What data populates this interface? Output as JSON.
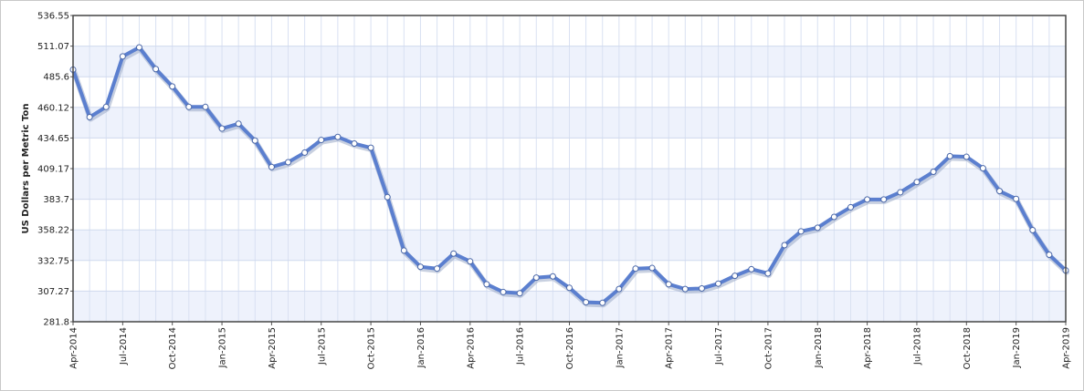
{
  "chart_data": {
    "type": "line",
    "ylabel": "US Dollars per Metric Ton",
    "ylim": [
      281.8,
      536.55
    ],
    "yticks": [
      "536.55",
      "511.07",
      "485.6",
      "460.12",
      "434.65",
      "409.17",
      "383.7",
      "358.22",
      "332.75",
      "307.27",
      "281.8"
    ],
    "xtick_labels": [
      "Apr-2014",
      "Jul-2014",
      "Oct-2014",
      "Jan-2015",
      "Apr-2015",
      "Jul-2015",
      "Oct-2015",
      "Jan-2016",
      "Apr-2016",
      "Jul-2016",
      "Oct-2016",
      "Jan-2017",
      "Apr-2017",
      "Jul-2017",
      "Oct-2017",
      "Jan-2018",
      "Apr-2018",
      "Jul-2018",
      "Oct-2018",
      "Jan-2019",
      "Apr-2019"
    ],
    "grid": true,
    "series": [
      {
        "color": "#5b7fcf",
        "x": [
          "2014-04",
          "2014-05",
          "2014-06",
          "2014-07",
          "2014-08",
          "2014-09",
          "2014-10",
          "2014-11",
          "2014-12",
          "2015-01",
          "2015-02",
          "2015-03",
          "2015-04",
          "2015-05",
          "2015-06",
          "2015-07",
          "2015-08",
          "2015-09",
          "2015-10",
          "2015-11",
          "2015-12",
          "2016-01",
          "2016-02",
          "2016-03",
          "2016-04",
          "2016-05",
          "2016-06",
          "2016-07",
          "2016-08",
          "2016-09",
          "2016-10",
          "2016-11",
          "2016-12",
          "2017-01",
          "2017-02",
          "2017-03",
          "2017-04",
          "2017-05",
          "2017-06",
          "2017-07",
          "2017-08",
          "2017-09",
          "2017-10",
          "2017-11",
          "2017-12",
          "2018-01",
          "2018-02",
          "2018-03",
          "2018-04",
          "2018-05",
          "2018-06",
          "2018-07",
          "2018-08",
          "2018-09",
          "2018-10",
          "2018-11",
          "2018-12",
          "2019-01",
          "2019-02",
          "2019-03",
          "2019-04"
        ],
        "values": [
          491.5,
          452.0,
          460.5,
          502.5,
          510.0,
          492.0,
          477.5,
          460.5,
          460.5,
          442.5,
          446.5,
          432.5,
          410.5,
          414.5,
          422.5,
          433.0,
          435.5,
          430.0,
          426.5,
          385.5,
          341.0,
          327.5,
          326.0,
          338.5,
          332.0,
          313.0,
          306.5,
          305.5,
          318.5,
          319.5,
          310.0,
          298.0,
          297.5,
          309.0,
          326.0,
          326.5,
          313.0,
          309.0,
          309.5,
          313.5,
          320.0,
          325.5,
          322.0,
          345.5,
          357.0,
          360.0,
          369.0,
          377.0,
          383.5,
          383.5,
          389.5,
          398.0,
          406.5,
          419.5,
          419.0,
          409.5,
          390.5,
          384.0,
          358.0,
          337.5,
          324.5
        ]
      }
    ]
  }
}
